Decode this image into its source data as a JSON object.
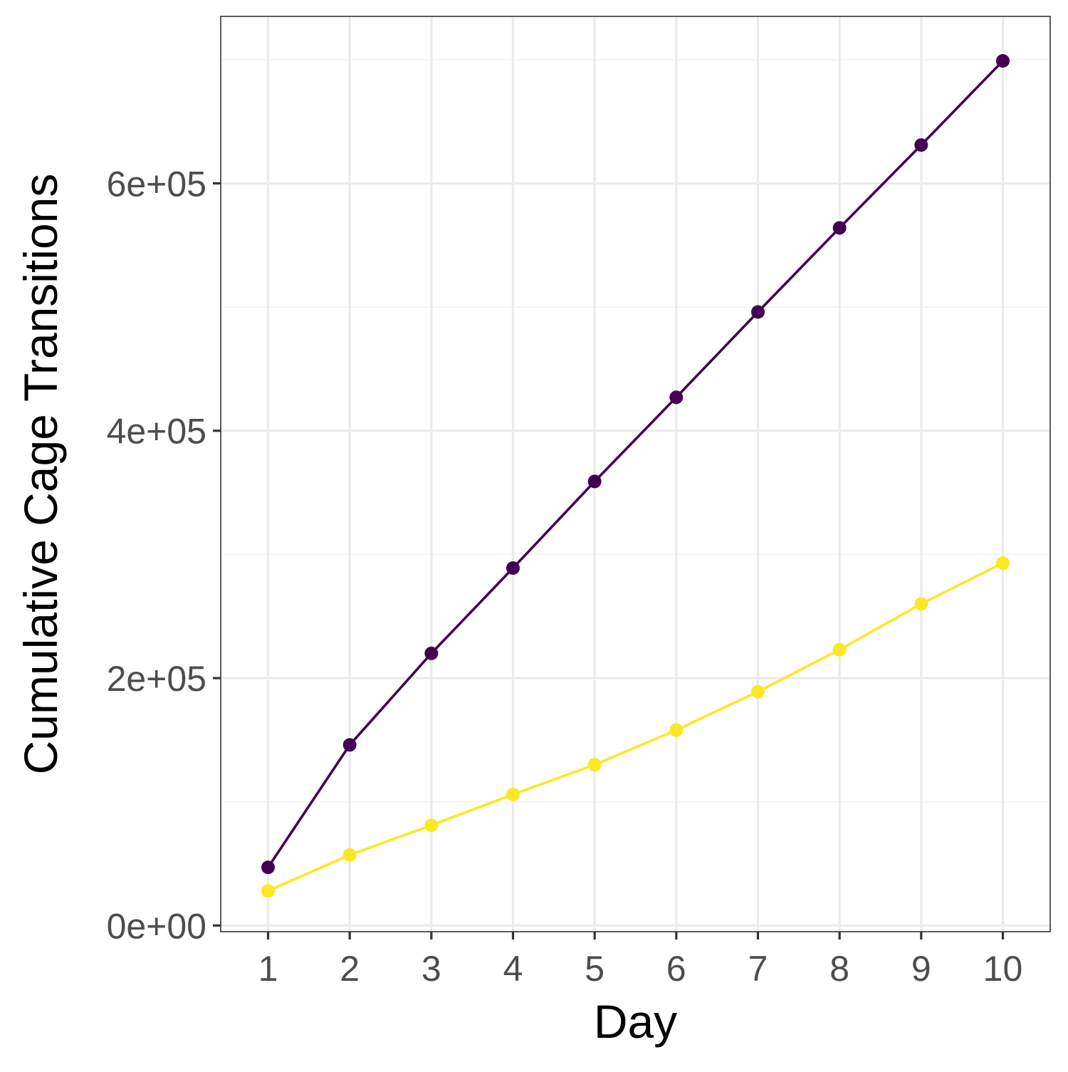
{
  "chart_data": {
    "type": "line",
    "title": "",
    "xlabel": "Day",
    "ylabel": "Cumulative Cage Transitions",
    "x": [
      1,
      2,
      3,
      4,
      5,
      6,
      7,
      8,
      9,
      10
    ],
    "x_tick_labels": [
      "1",
      "2",
      "3",
      "4",
      "5",
      "6",
      "7",
      "8",
      "9",
      "10"
    ],
    "y_ticks": [
      0,
      200000,
      400000,
      600000
    ],
    "y_tick_labels": [
      "0e+00",
      "2e+05",
      "4e+05",
      "6e+05"
    ],
    "xlim": [
      0.42,
      10.58
    ],
    "ylim": [
      -5000,
      735000
    ],
    "grid": true,
    "legend": "none",
    "series": [
      {
        "color": "#440154",
        "values": [
          47000,
          146000,
          220000,
          289000,
          359000,
          427000,
          496000,
          564000,
          631000,
          699000
        ]
      },
      {
        "color": "#FDE725",
        "values": [
          28000,
          57000,
          81000,
          106000,
          130000,
          158000,
          189000,
          223000,
          260000,
          293000
        ]
      }
    ]
  }
}
